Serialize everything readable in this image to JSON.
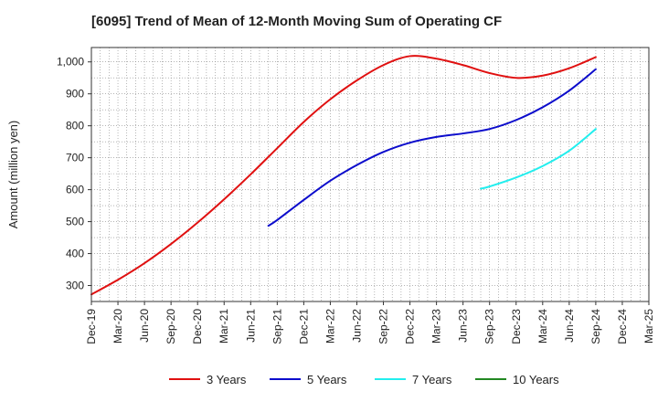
{
  "chart_data": {
    "type": "line",
    "title": "[6095]  Trend of Mean of 12-Month Moving Sum of Operating CF",
    "xlabel": "",
    "ylabel": "Amount (million yen)",
    "ylim": [
      250,
      1045
    ],
    "yticks": [
      300,
      400,
      500,
      600,
      700,
      800,
      900,
      1000
    ],
    "ytick_labels": [
      "300",
      "400",
      "500",
      "600",
      "700",
      "800",
      "900",
      "1,000"
    ],
    "categories": [
      "Dec-19",
      "Mar-20",
      "Jun-20",
      "Sep-20",
      "Dec-20",
      "Mar-21",
      "Jun-21",
      "Sep-21",
      "Dec-21",
      "Mar-22",
      "Jun-22",
      "Sep-22",
      "Dec-22",
      "Mar-23",
      "Jun-23",
      "Sep-23",
      "Dec-23",
      "Mar-24",
      "Jun-24",
      "Sep-24",
      "Dec-24",
      "Mar-25"
    ],
    "grid": true,
    "legend_position": "bottom",
    "series": [
      {
        "name": "3 Years",
        "color": "#e01010",
        "x": [
          "Dec-19",
          "Mar-20",
          "Jun-20",
          "Sep-20",
          "Dec-20",
          "Mar-21",
          "Jun-21",
          "Sep-21",
          "Dec-21",
          "Mar-22",
          "Jun-22",
          "Sep-22",
          "Dec-22",
          "Mar-23",
          "Jun-23",
          "Sep-23",
          "Dec-23",
          "Mar-24",
          "Jun-24",
          "Sep-24"
        ],
        "values": [
          272,
          318,
          370,
          430,
          497,
          570,
          648,
          730,
          812,
          883,
          942,
          990,
          1018,
          1010,
          990,
          965,
          950,
          957,
          980,
          1015
        ]
      },
      {
        "name": "5 Years",
        "color": "#0c0ccc",
        "x": [
          "Aug-21",
          "Sep-21",
          "Dec-21",
          "Mar-22",
          "Jun-22",
          "Sep-22",
          "Dec-22",
          "Mar-23",
          "Jun-23",
          "Sep-23",
          "Dec-23",
          "Mar-24",
          "Jun-24",
          "Sep-24"
        ],
        "values": [
          487,
          505,
          568,
          628,
          677,
          718,
          747,
          765,
          776,
          790,
          818,
          858,
          910,
          977
        ]
      },
      {
        "name": "7 Years",
        "color": "#22eeee",
        "x": [
          "Aug-23",
          "Sep-23",
          "Dec-23",
          "Mar-24",
          "Jun-24",
          "Sep-24"
        ],
        "values": [
          603,
          610,
          638,
          674,
          722,
          790
        ]
      },
      {
        "name": "10 Years",
        "color": "#228822",
        "x": [],
        "values": []
      }
    ]
  }
}
